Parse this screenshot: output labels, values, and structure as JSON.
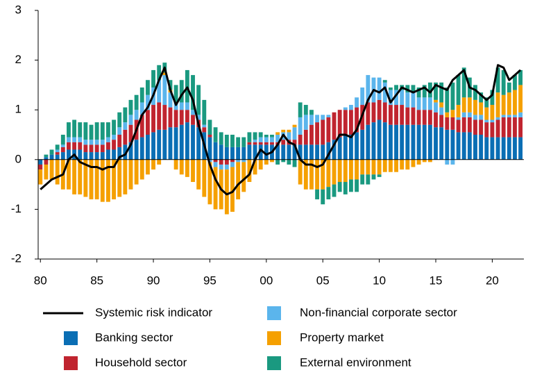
{
  "chart_data": {
    "type": "stacked-bar-line",
    "x": [
      1980,
      1980.5,
      1981,
      1981.5,
      1982,
      1982.5,
      1983,
      1983.5,
      1984,
      1984.5,
      1985,
      1985.5,
      1986,
      1986.5,
      1987,
      1987.5,
      1988,
      1988.5,
      1989,
      1989.5,
      1990,
      1990.5,
      1991,
      1991.5,
      1992,
      1992.5,
      1993,
      1993.5,
      1994,
      1994.5,
      1995,
      1995.5,
      1996,
      1996.5,
      1997,
      1997.5,
      1998,
      1998.5,
      1999,
      1999.5,
      2000,
      2000.5,
      2001,
      2001.5,
      2002,
      2002.5,
      2003,
      2003.5,
      2004,
      2004.5,
      2005,
      2005.5,
      2006,
      2006.5,
      2007,
      2007.5,
      2008,
      2008.5,
      2009,
      2009.5,
      2010,
      2010.5,
      2011,
      2011.5,
      2012,
      2012.5,
      2013,
      2013.5,
      2014,
      2014.5,
      2015,
      2015.5,
      2016,
      2016.5,
      2017,
      2017.5,
      2018,
      2018.5,
      2019,
      2019.5,
      2020,
      2020.5,
      2021,
      2021.5,
      2022,
      2022.5
    ],
    "series": [
      {
        "name": "Systemic risk indicator",
        "type": "line",
        "color": "#000000",
        "values": [
          -0.6,
          -0.5,
          -0.4,
          -0.35,
          -0.3,
          0,
          0.1,
          -0.05,
          -0.1,
          -0.15,
          -0.15,
          -0.2,
          -0.15,
          -0.15,
          0.05,
          0.1,
          0.3,
          0.6,
          0.9,
          1.05,
          1.3,
          1.6,
          1.85,
          1.4,
          1.1,
          1.3,
          1.45,
          1.2,
          0.7,
          0.3,
          -0.1,
          -0.4,
          -0.6,
          -0.7,
          -0.65,
          -0.5,
          -0.4,
          -0.3,
          0,
          0.2,
          0.1,
          0.15,
          0.3,
          0.5,
          0.35,
          0.3,
          0,
          -0.1,
          -0.1,
          -0.15,
          -0.1,
          0.1,
          0.3,
          0.5,
          0.5,
          0.45,
          0.6,
          0.9,
          1.2,
          1.4,
          1.35,
          1.45,
          1.15,
          1.3,
          1.45,
          1.4,
          1.35,
          1.4,
          1.45,
          1.35,
          1.5,
          1.45,
          1.4,
          1.6,
          1.7,
          1.8,
          1.45,
          1.4,
          1.3,
          1.2,
          1.3,
          1.9,
          1.85,
          1.6,
          1.7,
          1.8
        ]
      },
      {
        "name": "Banking sector",
        "type": "bar",
        "color": "#0a6eb4",
        "values": [
          -0.1,
          0.05,
          0.1,
          0.1,
          0.15,
          0.2,
          0.2,
          0.2,
          0.15,
          0.15,
          0.15,
          0.15,
          0.2,
          0.2,
          0.25,
          0.3,
          0.35,
          0.4,
          0.45,
          0.5,
          0.55,
          0.6,
          0.6,
          0.65,
          0.65,
          0.7,
          0.75,
          0.7,
          0.65,
          0.55,
          0.45,
          0.35,
          0.3,
          0.25,
          0.25,
          0.25,
          0.25,
          0.3,
          0.3,
          0.3,
          0.3,
          0.3,
          0.3,
          0.3,
          0.3,
          0.3,
          0.3,
          0.3,
          0.3,
          0.3,
          0.3,
          0.35,
          0.4,
          0.45,
          0.5,
          0.5,
          0.55,
          0.6,
          0.7,
          0.75,
          0.8,
          0.75,
          0.7,
          0.7,
          0.7,
          0.7,
          0.7,
          0.7,
          0.7,
          0.7,
          0.65,
          0.65,
          0.6,
          0.6,
          0.55,
          0.55,
          0.55,
          0.5,
          0.5,
          0.45,
          0.45,
          0.45,
          0.45,
          0.45,
          0.45,
          0.45
        ]
      },
      {
        "name": "Household sector",
        "type": "bar",
        "color": "#c0242f",
        "values": [
          -0.1,
          -0.1,
          0,
          0.05,
          0.1,
          0.15,
          0.15,
          0.15,
          0.15,
          0.15,
          0.15,
          0.15,
          0.15,
          0.2,
          0.25,
          0.3,
          0.35,
          0.4,
          0.45,
          0.5,
          0.55,
          0.55,
          0.5,
          0.4,
          0.35,
          0.3,
          0.25,
          0.2,
          0.15,
          0.1,
          0.05,
          -0.05,
          -0.1,
          -0.1,
          -0.05,
          0,
          0,
          0.05,
          0.05,
          0.05,
          0.05,
          0.05,
          0.05,
          0.1,
          0.1,
          0.1,
          0.2,
          0.3,
          0.4,
          0.45,
          0.5,
          0.5,
          0.55,
          0.55,
          0.5,
          0.5,
          0.5,
          0.5,
          0.45,
          0.4,
          0.4,
          0.4,
          0.4,
          0.4,
          0.4,
          0.35,
          0.35,
          0.3,
          0.3,
          0.3,
          0.3,
          0.25,
          0.25,
          0.25,
          0.25,
          0.3,
          0.3,
          0.3,
          0.3,
          0.3,
          0.3,
          0.35,
          0.4,
          0.4,
          0.4,
          0.4
        ]
      },
      {
        "name": "Non-financial corporate sector",
        "type": "bar",
        "color": "#5bb5ec",
        "values": [
          0,
          0,
          0,
          0.05,
          0.05,
          0.1,
          0.1,
          0.1,
          0.1,
          0.1,
          0.1,
          0.1,
          0.1,
          0.1,
          0.15,
          0.15,
          0.2,
          0.2,
          0.25,
          0.3,
          0.35,
          0.45,
          0.6,
          0.3,
          0.15,
          0.15,
          0.15,
          0.1,
          0.1,
          0.05,
          -0.05,
          -0.1,
          -0.1,
          -0.1,
          -0.1,
          -0.05,
          -0.05,
          0,
          0.05,
          0.1,
          0.1,
          0.1,
          0.15,
          0.15,
          0.15,
          0.25,
          0.35,
          0.3,
          0.2,
          0.15,
          0.1,
          0.05,
          0,
          0,
          0.05,
          0.1,
          0.2,
          0.35,
          0.55,
          0.5,
          0.45,
          0.4,
          0.3,
          0.3,
          0.3,
          0.3,
          0.3,
          0.25,
          0.25,
          0.25,
          0.2,
          0.15,
          -0.1,
          -0.1,
          0.05,
          0.1,
          0.1,
          0.1,
          0.1,
          0.05,
          0.05,
          0.05,
          0.05,
          0.05,
          0.05,
          0.1
        ]
      },
      {
        "name": "Property market",
        "type": "bar",
        "color": "#f5a000",
        "values": [
          -0.3,
          -0.3,
          -0.4,
          -0.5,
          -0.6,
          -0.6,
          -0.7,
          -0.7,
          -0.75,
          -0.8,
          -0.8,
          -0.85,
          -0.85,
          -0.8,
          -0.75,
          -0.7,
          -0.6,
          -0.5,
          -0.4,
          -0.3,
          -0.2,
          -0.1,
          0.05,
          0.05,
          -0.2,
          -0.3,
          -0.35,
          -0.45,
          -0.6,
          -0.75,
          -0.85,
          -0.85,
          -0.8,
          -0.9,
          -0.9,
          -0.75,
          -0.6,
          -0.45,
          -0.3,
          -0.2,
          -0.1,
          -0.05,
          0.05,
          0.05,
          0.05,
          0.05,
          -0.5,
          -0.6,
          -0.6,
          -0.6,
          -0.6,
          -0.55,
          -0.5,
          -0.45,
          -0.45,
          -0.4,
          -0.4,
          -0.3,
          -0.3,
          -0.3,
          -0.3,
          -0.25,
          -0.25,
          -0.25,
          -0.2,
          -0.2,
          -0.15,
          -0.1,
          -0.05,
          -0.05,
          0.05,
          0.1,
          0.1,
          0.15,
          0.25,
          0.3,
          0.3,
          0.3,
          0.25,
          0.25,
          0.3,
          0.5,
          0.4,
          0.45,
          0.5,
          0.55
        ]
      },
      {
        "name": "External environment",
        "type": "bar",
        "color": "#1a9980",
        "values": [
          0,
          0.05,
          0.1,
          0.1,
          0.2,
          0.3,
          0.35,
          0.3,
          0.35,
          0.3,
          0.35,
          0.35,
          0.3,
          0.3,
          0.3,
          0.3,
          0.3,
          0.3,
          0.3,
          0.3,
          0.35,
          0.3,
          0.2,
          0.2,
          0.35,
          0.45,
          0.65,
          0.7,
          0.6,
          0.5,
          0.3,
          0.3,
          0.25,
          0.25,
          0.25,
          0.2,
          0.2,
          0.2,
          0.15,
          0.1,
          0.05,
          0.05,
          -0.1,
          -0.05,
          -0.1,
          -0.15,
          0.3,
          0.2,
          0.1,
          -0.2,
          -0.3,
          -0.25,
          -0.25,
          -0.2,
          -0.25,
          -0.25,
          -0.25,
          -0.2,
          -0.2,
          -0.1,
          -0.05,
          0.05,
          0.05,
          0.1,
          0.1,
          0.15,
          0.15,
          0.2,
          0.25,
          0.3,
          0.35,
          0.4,
          0.5,
          0.55,
          0.6,
          0.6,
          0.4,
          0.3,
          0.2,
          0.2,
          0.3,
          0.5,
          0.5,
          0.2,
          0.3,
          0.3
        ]
      }
    ],
    "xlim": [
      1979.8,
      2022.8
    ],
    "xticks": [
      {
        "value": 1980,
        "label": "80"
      },
      {
        "value": 1985,
        "label": "85"
      },
      {
        "value": 1990,
        "label": "90"
      },
      {
        "value": 1995,
        "label": "95"
      },
      {
        "value": 2000,
        "label": "00"
      },
      {
        "value": 2005,
        "label": "05"
      },
      {
        "value": 2010,
        "label": "10"
      },
      {
        "value": 2015,
        "label": "15"
      },
      {
        "value": 2020,
        "label": "20"
      }
    ],
    "ylim": [
      -2,
      3
    ],
    "yticks": [
      -2,
      -1,
      0,
      1,
      2,
      3
    ]
  }
}
